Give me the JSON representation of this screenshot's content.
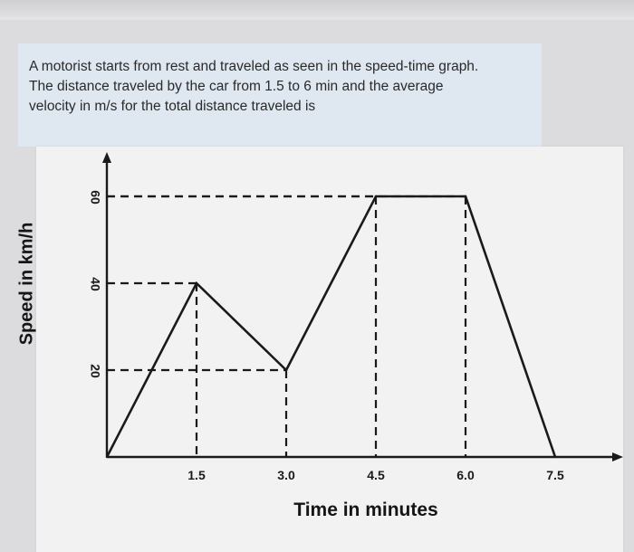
{
  "question": {
    "line1": "A motorist starts from rest and traveled as seen in the speed-time graph.",
    "line2": "The distance traveled  by the car from 1.5 to 6 min and the average",
    "line3": "velocity in m/s for the total distance traveled is"
  },
  "chart_data": {
    "type": "line",
    "xlabel": "Time in minutes",
    "ylabel": "Speed in km/h",
    "x_ticks": [
      "1.5",
      "3.0",
      "4.5",
      "6.0",
      "7.5"
    ],
    "y_ticks": [
      "20",
      "40",
      "60"
    ],
    "x": [
      0,
      1.5,
      3.0,
      4.5,
      6.0,
      7.5
    ],
    "y": [
      0,
      40,
      20,
      60,
      60,
      0
    ],
    "xlim": [
      0,
      7.5
    ],
    "ylim": [
      0,
      60
    ],
    "grid": false,
    "colors": {
      "line": "#1a1a1a",
      "background": "#f2f2f2"
    }
  }
}
